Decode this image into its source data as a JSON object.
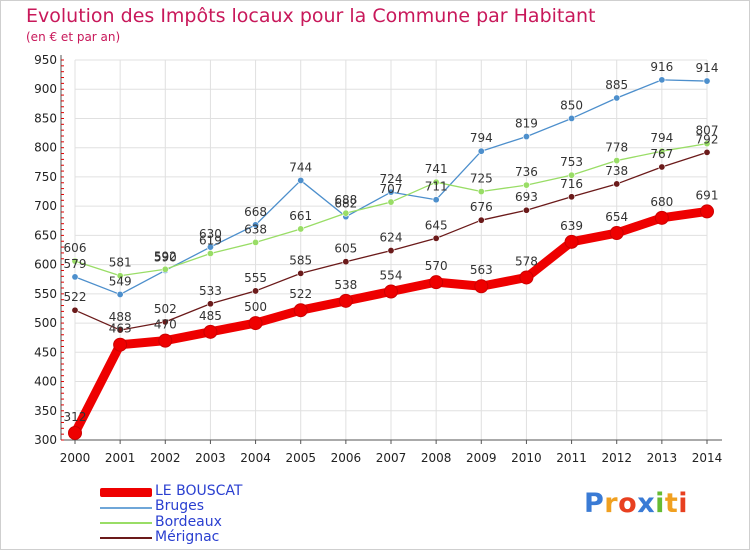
{
  "header": {
    "title": "Evolution des Impôts locaux pour la Commune par Habitant",
    "subtitle": "(en € et par an)"
  },
  "colors": {
    "title": "#c8185a",
    "le_bouscat": "#ee0000",
    "bruges": "#4d8fcc",
    "bordeaux": "#99dd66",
    "merignac": "#6b1a1a",
    "grid": "#e0e0e0",
    "axis_ticks_red": "#dd0000",
    "legend_text": "#2a3fd0"
  },
  "legend": [
    {
      "label": "LE BOUSCAT",
      "color": "#ee0000"
    },
    {
      "label": "Bruges",
      "color": "#6fa6d8"
    },
    {
      "label": "Bordeaux",
      "color": "#99dd66"
    },
    {
      "label": "Mérignac",
      "color": "#6b1a1a"
    }
  ],
  "logo": {
    "letters": [
      "P",
      "r",
      "o",
      "x",
      "i",
      "t",
      "i"
    ],
    "colors": [
      "#3a7bd5",
      "#f0a020",
      "#e84020",
      "#3a7bd5",
      "#66bb33",
      "#f0a020",
      "#e84020"
    ]
  },
  "chart_data": {
    "type": "line",
    "x": [
      "2000",
      "2001",
      "2002",
      "2003",
      "2004",
      "2005",
      "2006",
      "2007",
      "2008",
      "2009",
      "2010",
      "2011",
      "2012",
      "2013",
      "2014"
    ],
    "ylim": [
      300,
      950
    ],
    "yticks": [
      300,
      350,
      400,
      450,
      500,
      550,
      600,
      650,
      700,
      750,
      800,
      850,
      900,
      950
    ],
    "grid": true,
    "series": [
      {
        "name": "Bruges",
        "color": "#4d8fcc",
        "values": [
          579,
          549,
          590,
          630,
          668,
          744,
          682,
          724,
          711,
          794,
          819,
          850,
          885,
          916,
          914
        ]
      },
      {
        "name": "Bordeaux",
        "color": "#99dd66",
        "values": [
          606,
          581,
          592,
          619,
          638,
          661,
          688,
          707,
          741,
          725,
          736,
          753,
          778,
          794,
          807
        ]
      },
      {
        "name": "Mérignac",
        "color": "#6b1a1a",
        "values": [
          522,
          488,
          502,
          533,
          555,
          585,
          605,
          624,
          645,
          676,
          693,
          716,
          738,
          767,
          792
        ]
      },
      {
        "name": "LE BOUSCAT",
        "color": "#ee0000",
        "values": [
          312,
          463,
          470,
          485,
          500,
          522,
          538,
          554,
          570,
          563,
          578,
          639,
          654,
          680,
          691
        ]
      }
    ]
  }
}
